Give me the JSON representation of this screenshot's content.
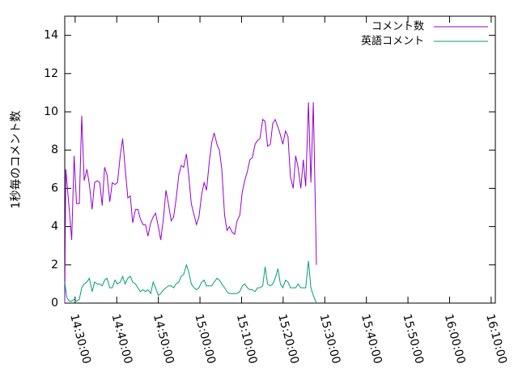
{
  "chart_data": {
    "type": "line",
    "title": "",
    "xlabel": "",
    "ylabel": "1秒毎のコメント数",
    "ylim": [
      0,
      15
    ],
    "yticks": [
      0,
      2,
      4,
      6,
      8,
      10,
      12,
      14
    ],
    "xlim": [
      "14:27:30",
      "16:11:00"
    ],
    "xticks": [
      "14:30:00",
      "14:40:00",
      "14:50:00",
      "15:00:00",
      "15:10:00",
      "15:20:00",
      "15:30:00",
      "15:40:00",
      "15:50:00",
      "16:00:00",
      "16:10:00"
    ],
    "grid": false,
    "legend_position": "top-right",
    "series": [
      {
        "name": "コメント数",
        "color": "#9400d3",
        "points": [
          [
            "14:27:30",
            0.0
          ],
          [
            "14:27:45",
            7.0
          ],
          [
            "14:28:35",
            4.9
          ],
          [
            "14:29:10",
            3.3
          ],
          [
            "14:29:45",
            7.7
          ],
          [
            "14:30:20",
            5.2
          ],
          [
            "14:31:00",
            5.2
          ],
          [
            "14:31:35",
            9.8
          ],
          [
            "14:32:10",
            6.4
          ],
          [
            "14:32:50",
            7.0
          ],
          [
            "14:33:25",
            6.2
          ],
          [
            "14:34:05",
            4.9
          ],
          [
            "14:34:40",
            6.3
          ],
          [
            "14:35:20",
            6.4
          ],
          [
            "14:35:55",
            6.3
          ],
          [
            "14:36:30",
            5.1
          ],
          [
            "14:37:05",
            7.1
          ],
          [
            "14:37:40",
            6.7
          ],
          [
            "14:38:20",
            5.3
          ],
          [
            "14:38:55",
            6.3
          ],
          [
            "14:39:35",
            6.2
          ],
          [
            "14:40:10",
            6.3
          ],
          [
            "14:40:50",
            7.7
          ],
          [
            "14:41:25",
            8.6
          ],
          [
            "14:42:00",
            7.1
          ],
          [
            "14:42:40",
            5.5
          ],
          [
            "14:43:15",
            5.6
          ],
          [
            "14:43:50",
            4.2
          ],
          [
            "14:44:30",
            4.9
          ],
          [
            "14:45:05",
            4.9
          ],
          [
            "14:45:40",
            4.4
          ],
          [
            "14:46:20",
            4.1
          ],
          [
            "14:46:55",
            4.1
          ],
          [
            "14:47:30",
            3.5
          ],
          [
            "14:48:10",
            4.2
          ],
          [
            "14:48:45",
            4.5
          ],
          [
            "14:49:20",
            4.7
          ],
          [
            "14:50:00",
            4.0
          ],
          [
            "14:50:35",
            3.3
          ],
          [
            "14:51:15",
            4.5
          ],
          [
            "14:51:50",
            5.9
          ],
          [
            "14:52:25",
            5.2
          ],
          [
            "14:53:05",
            4.3
          ],
          [
            "14:53:40",
            4.5
          ],
          [
            "14:54:15",
            5.4
          ],
          [
            "14:54:55",
            6.7
          ],
          [
            "14:55:30",
            7.2
          ],
          [
            "14:56:05",
            7.1
          ],
          [
            "14:56:45",
            7.8
          ],
          [
            "14:57:20",
            6.6
          ],
          [
            "14:57:55",
            5.2
          ],
          [
            "14:58:35",
            4.6
          ],
          [
            "14:59:10",
            4.1
          ],
          [
            "14:59:45",
            4.5
          ],
          [
            "15:00:25",
            5.7
          ],
          [
            "15:01:00",
            6.3
          ],
          [
            "15:01:35",
            5.9
          ],
          [
            "15:02:15",
            7.4
          ],
          [
            "15:02:50",
            8.4
          ],
          [
            "15:03:25",
            8.9
          ],
          [
            "15:04:05",
            8.3
          ],
          [
            "15:04:40",
            8.0
          ],
          [
            "15:05:15",
            7.0
          ],
          [
            "15:05:55",
            4.6
          ],
          [
            "15:06:30",
            3.8
          ],
          [
            "15:07:05",
            4.0
          ],
          [
            "15:07:45",
            3.7
          ],
          [
            "15:08:20",
            3.6
          ],
          [
            "15:08:55",
            4.3
          ],
          [
            "15:09:35",
            4.6
          ],
          [
            "15:10:10",
            5.8
          ],
          [
            "15:10:45",
            6.4
          ],
          [
            "15:11:25",
            6.9
          ],
          [
            "15:12:00",
            7.5
          ],
          [
            "15:12:35",
            7.6
          ],
          [
            "15:13:15",
            8.3
          ],
          [
            "15:13:50",
            8.5
          ],
          [
            "15:14:25",
            8.6
          ],
          [
            "15:15:05",
            9.6
          ],
          [
            "15:15:40",
            9.5
          ],
          [
            "15:16:15",
            8.2
          ],
          [
            "15:16:55",
            8.3
          ],
          [
            "15:17:30",
            9.4
          ],
          [
            "15:18:05",
            9.6
          ],
          [
            "15:18:45",
            9.2
          ],
          [
            "15:19:20",
            8.8
          ],
          [
            "15:19:55",
            8.3
          ],
          [
            "15:20:35",
            9.0
          ],
          [
            "15:21:10",
            8.7
          ],
          [
            "15:21:45",
            6.6
          ],
          [
            "15:22:25",
            6.0
          ],
          [
            "15:23:00",
            7.7
          ],
          [
            "15:23:35",
            7.1
          ],
          [
            "15:24:15",
            6.0
          ],
          [
            "15:24:50",
            7.5
          ],
          [
            "15:25:25",
            6.1
          ],
          [
            "15:26:05",
            10.5
          ],
          [
            "15:26:40",
            6.3
          ],
          [
            "15:27:15",
            10.5
          ],
          [
            "15:28:00",
            2.0
          ]
        ]
      },
      {
        "name": "英語コメント",
        "color": "#009e73",
        "points": [
          [
            "14:27:30",
            1.1
          ],
          [
            "14:28:00",
            0.3
          ],
          [
            "14:28:35",
            0.1
          ],
          [
            "14:29:10",
            0.1
          ],
          [
            "14:29:45",
            0.2
          ],
          [
            "14:30:20",
            0.1
          ],
          [
            "14:31:00",
            0.2
          ],
          [
            "14:31:35",
            0.8
          ],
          [
            "14:32:10",
            1.0
          ],
          [
            "14:32:50",
            1.1
          ],
          [
            "14:33:25",
            1.3
          ],
          [
            "14:34:05",
            0.6
          ],
          [
            "14:34:40",
            1.1
          ],
          [
            "14:35:20",
            1.0
          ],
          [
            "14:35:55",
            1.0
          ],
          [
            "14:36:30",
            0.9
          ],
          [
            "14:37:05",
            1.2
          ],
          [
            "14:37:40",
            1.3
          ],
          [
            "14:38:20",
            0.8
          ],
          [
            "14:38:55",
            0.8
          ],
          [
            "14:39:35",
            1.2
          ],
          [
            "14:40:10",
            1.0
          ],
          [
            "14:40:50",
            1.1
          ],
          [
            "14:41:25",
            1.4
          ],
          [
            "14:42:00",
            1.0
          ],
          [
            "14:42:40",
            1.3
          ],
          [
            "14:43:15",
            1.4
          ],
          [
            "14:43:50",
            1.1
          ],
          [
            "14:44:30",
            1.0
          ],
          [
            "14:45:05",
            0.8
          ],
          [
            "14:45:40",
            0.6
          ],
          [
            "14:46:20",
            0.7
          ],
          [
            "14:46:55",
            0.6
          ],
          [
            "14:47:30",
            0.7
          ],
          [
            "14:48:10",
            0.5
          ],
          [
            "14:48:45",
            1.1
          ],
          [
            "14:49:20",
            0.8
          ],
          [
            "14:50:00",
            0.4
          ],
          [
            "14:50:35",
            0.5
          ],
          [
            "14:51:15",
            0.7
          ],
          [
            "14:51:50",
            0.8
          ],
          [
            "14:52:25",
            0.9
          ],
          [
            "14:53:05",
            0.9
          ],
          [
            "14:53:40",
            0.8
          ],
          [
            "14:54:15",
            1.0
          ],
          [
            "14:54:55",
            1.1
          ],
          [
            "14:55:30",
            1.4
          ],
          [
            "14:56:05",
            1.5
          ],
          [
            "14:56:45",
            2.0
          ],
          [
            "14:57:20",
            1.6
          ],
          [
            "14:57:55",
            1.0
          ],
          [
            "14:58:35",
            0.8
          ],
          [
            "14:59:10",
            0.7
          ],
          [
            "14:59:45",
            0.8
          ],
          [
            "15:00:25",
            1.1
          ],
          [
            "15:01:00",
            1.2
          ],
          [
            "15:01:35",
            0.9
          ],
          [
            "15:02:15",
            0.9
          ],
          [
            "15:02:50",
            0.9
          ],
          [
            "15:03:25",
            1.1
          ],
          [
            "15:04:05",
            1.3
          ],
          [
            "15:04:40",
            1.2
          ],
          [
            "15:05:15",
            1.0
          ],
          [
            "15:05:55",
            0.8
          ],
          [
            "15:06:30",
            0.6
          ],
          [
            "15:07:05",
            0.5
          ],
          [
            "15:07:45",
            0.5
          ],
          [
            "15:08:20",
            0.5
          ],
          [
            "15:08:55",
            0.5
          ],
          [
            "15:09:35",
            0.6
          ],
          [
            "15:10:10",
            0.9
          ],
          [
            "15:10:45",
            1.0
          ],
          [
            "15:11:25",
            0.8
          ],
          [
            "15:12:00",
            0.7
          ],
          [
            "15:12:35",
            0.7
          ],
          [
            "15:13:15",
            0.6
          ],
          [
            "15:13:50",
            0.8
          ],
          [
            "15:14:25",
            0.8
          ],
          [
            "15:15:05",
            0.9
          ],
          [
            "15:15:40",
            1.9
          ],
          [
            "15:16:15",
            1.0
          ],
          [
            "15:16:55",
            0.9
          ],
          [
            "15:17:30",
            1.0
          ],
          [
            "15:18:05",
            1.3
          ],
          [
            "15:18:45",
            1.8
          ],
          [
            "15:19:20",
            1.0
          ],
          [
            "15:19:55",
            0.8
          ],
          [
            "15:20:35",
            1.2
          ],
          [
            "15:21:10",
            1.1
          ],
          [
            "15:21:45",
            0.8
          ],
          [
            "15:22:25",
            0.8
          ],
          [
            "15:23:00",
            0.8
          ],
          [
            "15:23:35",
            1.0
          ],
          [
            "15:24:15",
            0.8
          ],
          [
            "15:24:50",
            0.8
          ],
          [
            "15:25:25",
            0.8
          ],
          [
            "15:26:05",
            2.2
          ],
          [
            "15:26:40",
            0.8
          ],
          [
            "15:27:15",
            0.4
          ],
          [
            "15:28:00",
            0.0
          ]
        ]
      }
    ]
  }
}
